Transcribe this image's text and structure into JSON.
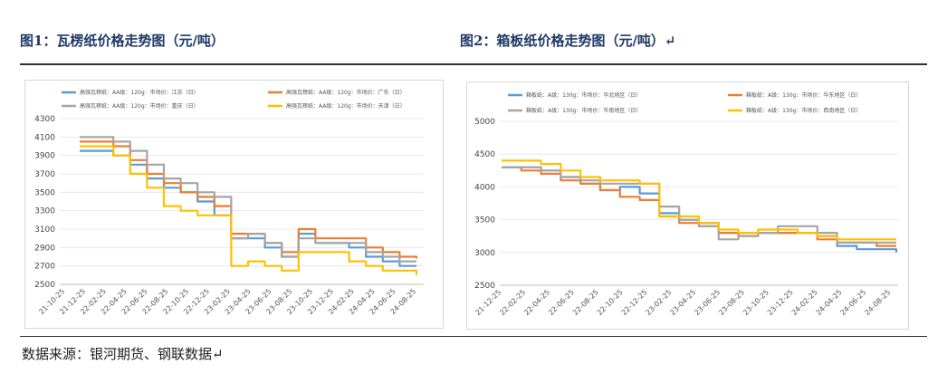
{
  "header": {
    "left_title": "图1：瓦楞纸价格走势图（元/吨）",
    "right_title": "图2：箱板纸价格走势图（元/吨）↵"
  },
  "footer": {
    "source": "数据来源：银河期货、钢联数据↵"
  },
  "chart_data": [
    {
      "type": "line",
      "title": "瓦楞纸价格走势图（元/吨）",
      "xlabel": "",
      "ylabel": "元/吨",
      "ylim": [
        2500,
        4300
      ],
      "yticks": [
        2500,
        2700,
        2900,
        3100,
        3300,
        3500,
        3700,
        3900,
        4100,
        4300
      ],
      "x_tick_labels": [
        "21-10-25",
        "21-12-25",
        "22-02-25",
        "22-04-25",
        "22-06-25",
        "22-08-25",
        "22-10-25",
        "22-12-25",
        "23-02-25",
        "23-04-25",
        "23-06-25",
        "23-08-25",
        "23-10-25",
        "23-12-25",
        "24-02-25",
        "24-04-25",
        "24-06-25",
        "24-08-25"
      ],
      "series": [
        {
          "name": "高强瓦楞纸：AA级：120g：市场价：江苏（日）",
          "color": "#5b9bd5",
          "values": [
            3950,
            3950,
            3900,
            3800,
            3650,
            3550,
            3500,
            3400,
            3250,
            3000,
            3000,
            2900,
            2800,
            3050,
            2950,
            2950,
            2900,
            2800,
            2750,
            2700,
            2700
          ]
        },
        {
          "name": "高强瓦楞纸：AA级：120g：市场价：广东（日）",
          "color": "#ed7d31",
          "values": [
            4050,
            4050,
            4000,
            3850,
            3700,
            3600,
            3500,
            3450,
            3350,
            3050,
            3050,
            2950,
            2850,
            3100,
            3000,
            3000,
            3000,
            2900,
            2850,
            2800,
            2780
          ]
        },
        {
          "name": "高强瓦楞纸：AA级：120g：市场价：重庆（日）",
          "color": "#a5a5a5",
          "values": [
            4100,
            4100,
            4050,
            3950,
            3800,
            3650,
            3600,
            3500,
            3450,
            3000,
            3050,
            2950,
            2800,
            3000,
            2950,
            2950,
            2950,
            2850,
            2800,
            2750,
            2750
          ]
        },
        {
          "name": "高强瓦楞纸：AA级：120g：市场价：天津（日）",
          "color": "#ffc000",
          "values": [
            4000,
            4000,
            3900,
            3700,
            3550,
            3350,
            3300,
            3250,
            3250,
            2700,
            2750,
            2700,
            2650,
            2850,
            2850,
            2850,
            2750,
            2700,
            2650,
            2650,
            2600
          ]
        }
      ]
    },
    {
      "type": "line",
      "title": "箱板纸价格走势图（元/吨）",
      "xlabel": "",
      "ylabel": "元/吨",
      "ylim": [
        2500,
        5000
      ],
      "yticks": [
        2500,
        3000,
        3500,
        4000,
        4500,
        5000
      ],
      "x_tick_labels": [
        "21-12-25",
        "22-02-25",
        "22-04-25",
        "22-06-25",
        "22-08-25",
        "22-10-25",
        "22-12-25",
        "23-02-25",
        "23-04-25",
        "23-06-25",
        "23-08-25",
        "23-10-25",
        "23-12-25",
        "24-02-25",
        "24-04-25",
        "24-06-25",
        "24-08-25"
      ],
      "series": [
        {
          "name": "箱板纸：A级：130g：市场价：华北地区（日）",
          "color": "#5b9bd5",
          "values": [
            4300,
            4300,
            4250,
            4150,
            4050,
            3950,
            4000,
            3900,
            3600,
            3500,
            3450,
            3300,
            3300,
            3300,
            3300,
            3300,
            3250,
            3100,
            3050,
            3050,
            3000
          ]
        },
        {
          "name": "箱板纸：A级：130g：市场价：华东地区（日）",
          "color": "#ed7d31",
          "values": [
            4300,
            4250,
            4200,
            4100,
            4050,
            3950,
            3850,
            3800,
            3550,
            3450,
            3400,
            3300,
            3250,
            3300,
            3300,
            3300,
            3200,
            3150,
            3150,
            3100,
            3100
          ]
        },
        {
          "name": "箱板纸：A级：130g：市场价：华南地区（日）",
          "color": "#a5a5a5",
          "values": [
            4300,
            4300,
            4250,
            4150,
            4100,
            4050,
            4050,
            4050,
            3700,
            3500,
            3400,
            3200,
            3250,
            3300,
            3400,
            3400,
            3300,
            3150,
            3150,
            3150,
            3150
          ]
        },
        {
          "name": "箱板纸：A级：130g：市场价：西南地区（日）",
          "color": "#ffc000",
          "values": [
            4400,
            4400,
            4350,
            4250,
            4150,
            4100,
            4100,
            4050,
            3550,
            3550,
            3450,
            3350,
            3300,
            3350,
            3350,
            3300,
            3250,
            3200,
            3200,
            3200,
            3200
          ]
        }
      ]
    }
  ]
}
